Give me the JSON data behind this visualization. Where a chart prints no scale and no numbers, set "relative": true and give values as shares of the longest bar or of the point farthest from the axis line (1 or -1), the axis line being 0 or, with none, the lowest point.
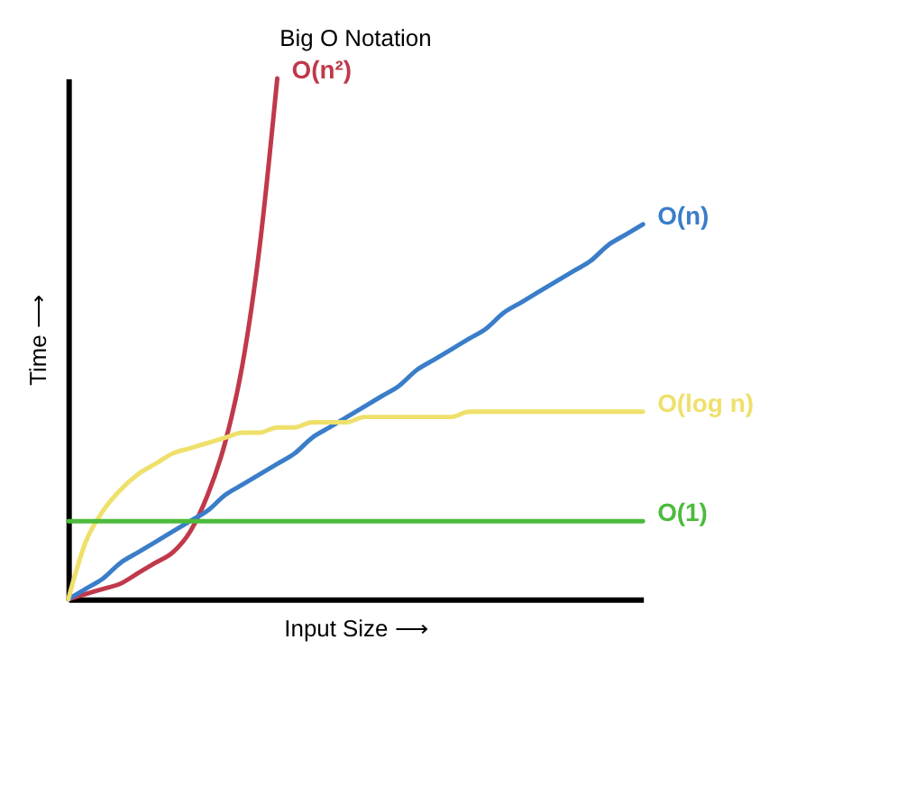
{
  "chart_data": {
    "type": "line",
    "title": "Big O Notation",
    "xlabel": "Input Size ⟶",
    "ylabel": "Time ⟶",
    "relative": true,
    "legend": false,
    "grid": false,
    "marker": "none",
    "line_style": "solid",
    "categories": [
      null,
      null,
      null,
      null,
      null,
      null,
      null,
      null,
      null,
      null,
      null,
      null,
      null,
      null,
      null,
      null,
      null,
      null,
      null,
      null,
      null,
      null,
      null,
      null,
      null,
      null,
      null,
      null,
      null,
      null,
      null,
      null,
      null,
      null
    ],
    "series": [
      {
        "name": "O(n²)",
        "color": "#c0394b",
        "values": [
          0,
          0.01,
          0.02,
          0.03,
          0.05,
          0.07,
          0.09,
          0.13,
          0.2,
          0.3,
          0.45,
          0.68,
          1,
          null,
          null,
          null,
          null,
          null,
          null,
          null,
          null,
          null,
          null,
          null,
          null,
          null,
          null,
          null,
          null,
          null,
          null,
          null,
          null,
          null
        ]
      },
      {
        "name": "O(n)",
        "color": "#3a7dc9",
        "values": [
          0,
          0.02,
          0.04,
          0.07,
          0.09,
          0.11,
          0.13,
          0.15,
          0.17,
          0.2,
          0.22,
          0.24,
          0.26,
          0.28,
          0.31,
          0.33,
          0.35,
          0.37,
          0.39,
          0.41,
          0.44,
          0.46,
          0.48,
          0.5,
          0.52,
          0.55,
          0.57,
          0.59,
          0.61,
          0.63,
          0.65,
          0.68,
          0.7,
          0.72
        ]
      },
      {
        "name": "O(log n)",
        "color": "#eee06a",
        "values": [
          0,
          0.11,
          0.17,
          0.21,
          0.24,
          0.26,
          0.28,
          0.29,
          0.3,
          0.31,
          0.32,
          0.32,
          0.33,
          0.33,
          0.34,
          0.34,
          0.34,
          0.35,
          0.35,
          0.35,
          0.35,
          0.35,
          0.35,
          0.36,
          0.36,
          0.36,
          0.36,
          0.36,
          0.36,
          0.36,
          0.36,
          0.36,
          0.36,
          0.36
        ]
      },
      {
        "name": "O(1)",
        "color": "#4cbb3c",
        "values": [
          0.15,
          0.15,
          0.15,
          0.15,
          0.15,
          0.15,
          0.15,
          0.15,
          0.15,
          0.15,
          0.15,
          0.15,
          0.15,
          0.15,
          0.15,
          0.15,
          0.15,
          0.15,
          0.15,
          0.15,
          0.15,
          0.15,
          0.15,
          0.15,
          0.15,
          0.15,
          0.15,
          0.15,
          0.15,
          0.15,
          0.15,
          0.15,
          0.15,
          0.15
        ]
      }
    ]
  }
}
